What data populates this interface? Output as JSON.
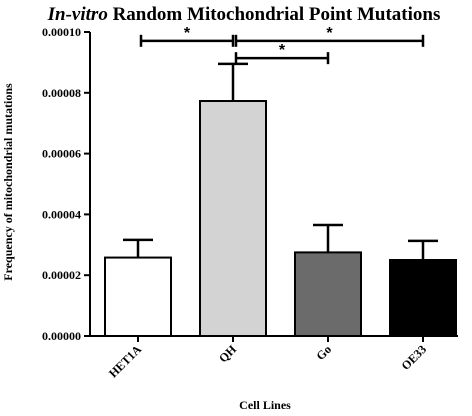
{
  "chart_data": {
    "type": "bar",
    "title_italic": "In-vitro",
    "title_rest": " Random Mitochondrial Point Mutations",
    "xlabel": "Cell Lines",
    "ylabel": "Frequency of mitochondrial mutations",
    "ylim": [
      0,
      0.0001
    ],
    "yticks": [
      "0.00000",
      "0.00002",
      "0.00004",
      "0.00006",
      "0.00008",
      "0.00010"
    ],
    "tick_values": [
      0,
      2e-05,
      4e-05,
      6e-05,
      8e-05,
      0.0001
    ],
    "categories": [
      "HET1A",
      "QH",
      "Go",
      "OE33"
    ],
    "values": [
      2.58e-05,
      7.73e-05,
      2.75e-05,
      2.5e-05
    ],
    "errors": [
      5.8e-06,
      1.22e-05,
      9e-06,
      6.3e-06
    ],
    "colors": [
      "#ffffff",
      "#d3d3d3",
      "#6b6b6b",
      "#000000"
    ],
    "significance": [
      {
        "from": "HET1A",
        "to": "QH",
        "y": 9.71e-05,
        "label": "*"
      },
      {
        "from": "QH",
        "to": "OE33",
        "y": 9.71e-05,
        "label": "*"
      },
      {
        "from": "QH",
        "to": "Go",
        "y": 9.14e-05,
        "label": "*"
      }
    ]
  }
}
